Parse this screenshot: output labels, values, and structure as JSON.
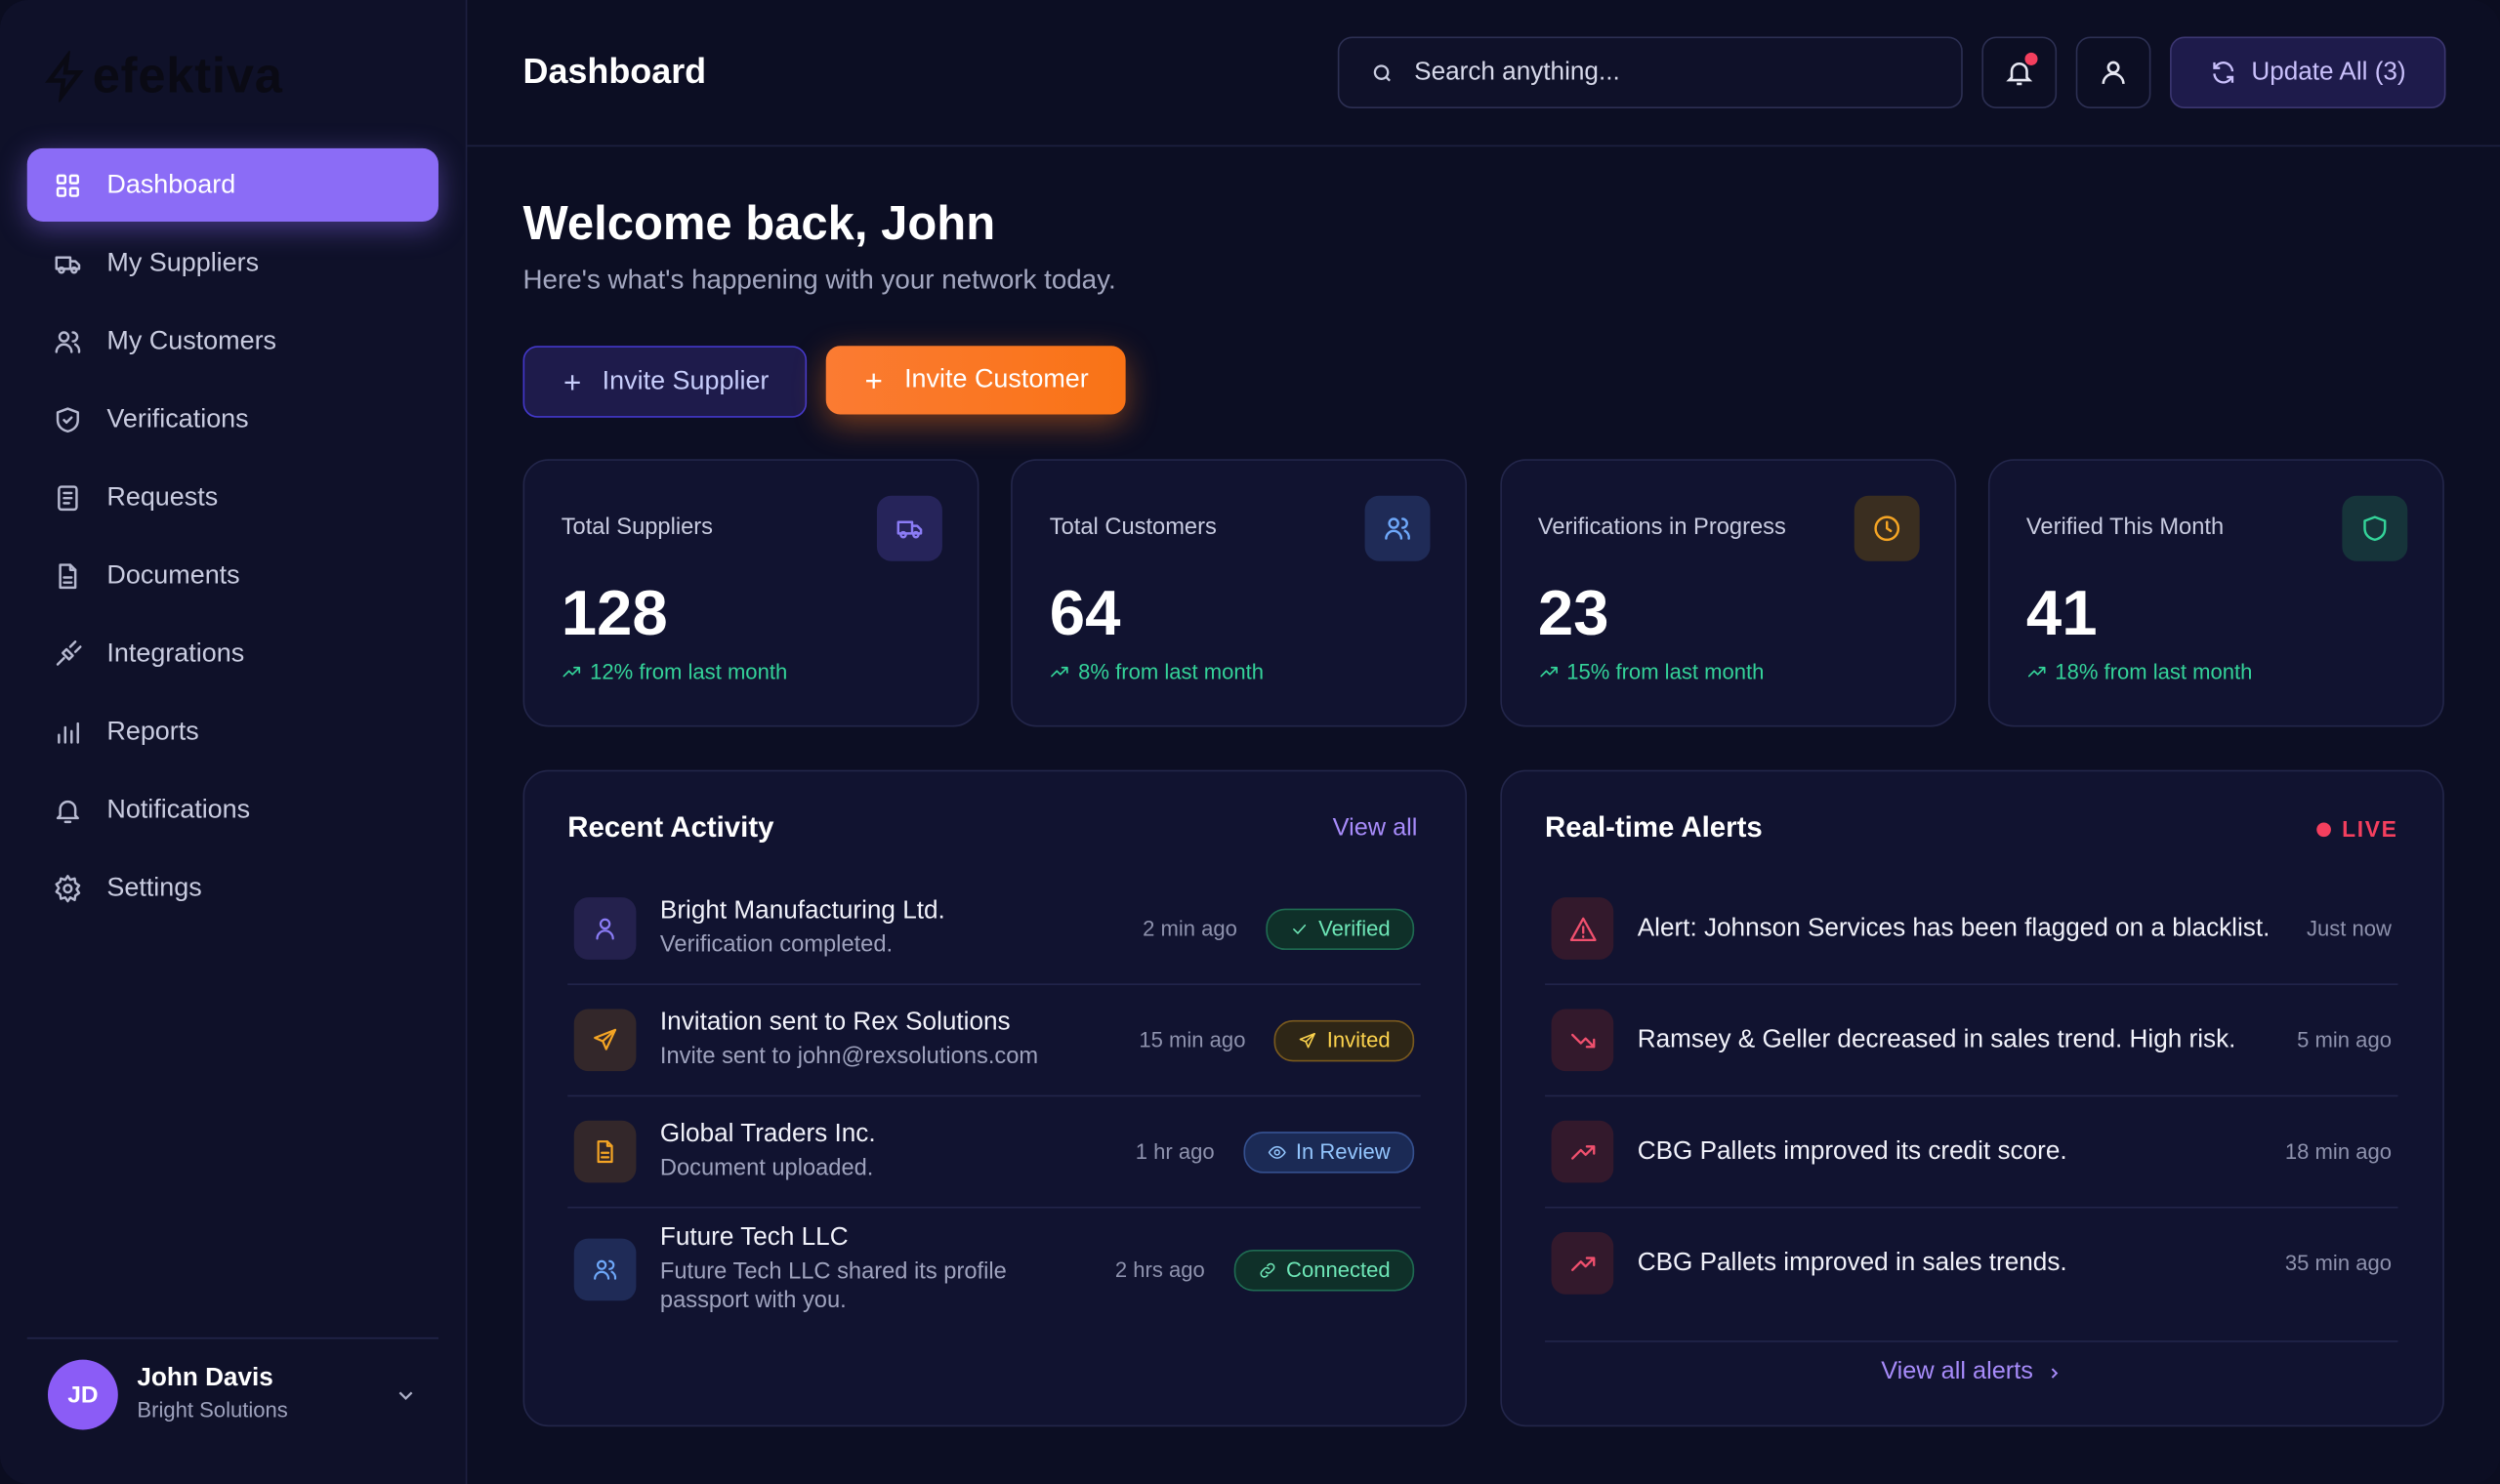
{
  "brand": "efektiva",
  "nav": [
    "Dashboard",
    "My Suppliers",
    "My Customers",
    "Verifications",
    "Requests",
    "Documents",
    "Integrations",
    "Reports",
    "Notifications",
    "Settings"
  ],
  "user": {
    "initials": "JD",
    "name": "John Davis",
    "company": "Bright Solutions"
  },
  "header": {
    "title": "Dashboard",
    "search_placeholder": "Search anything...",
    "update_button": "Update All (3)"
  },
  "welcome": {
    "title": "Welcome back, John",
    "subtitle": "Here's what's happening with your network today."
  },
  "actions": [
    "Invite Supplier",
    "Invite Customer"
  ],
  "stats": [
    {
      "label": "Total Suppliers",
      "value": "128",
      "change": "12% from last month"
    },
    {
      "label": "Total Customers",
      "value": "64",
      "change": "8% from last month"
    },
    {
      "label": "Verifications in Progress",
      "value": "23",
      "change": "15% from last month"
    },
    {
      "label": "Verified This Month",
      "value": "41",
      "change": "18% from last month"
    }
  ],
  "activity": {
    "title": "Recent Activity",
    "link": "View all",
    "items": [
      {
        "title": "Bright Manufacturing Ltd.",
        "subtitle": "Verification completed.",
        "time": "2 min ago",
        "status": "Verified"
      },
      {
        "title": "Invitation sent to Rex Solutions",
        "subtitle": "Invite sent to john@rexsolutions.com",
        "time": "15 min ago",
        "status": "Invited"
      },
      {
        "title": "Global Traders Inc.",
        "subtitle": "Document uploaded.",
        "time": "1 hr ago",
        "status": "In Review"
      },
      {
        "title": "Future Tech LLC",
        "subtitle": "Future Tech LLC shared its profile passport with you.",
        "time": "2 hrs ago",
        "status": "Connected"
      }
    ]
  },
  "alerts": {
    "title": "Real-time Alerts",
    "badge": "LIVE",
    "link": "View all alerts",
    "items": [
      {
        "text": "Alert: Johnson Services has been flagged on a blacklist.",
        "time": "Just now"
      },
      {
        "text": "Ramsey & Geller decreased in sales trend. High risk.",
        "time": "5 min ago"
      },
      {
        "text": "CBG Pallets improved its credit score.",
        "time": "18 min ago"
      },
      {
        "text": "CBG Pallets improved in sales trends.",
        "time": "35 min ago"
      }
    ]
  }
}
